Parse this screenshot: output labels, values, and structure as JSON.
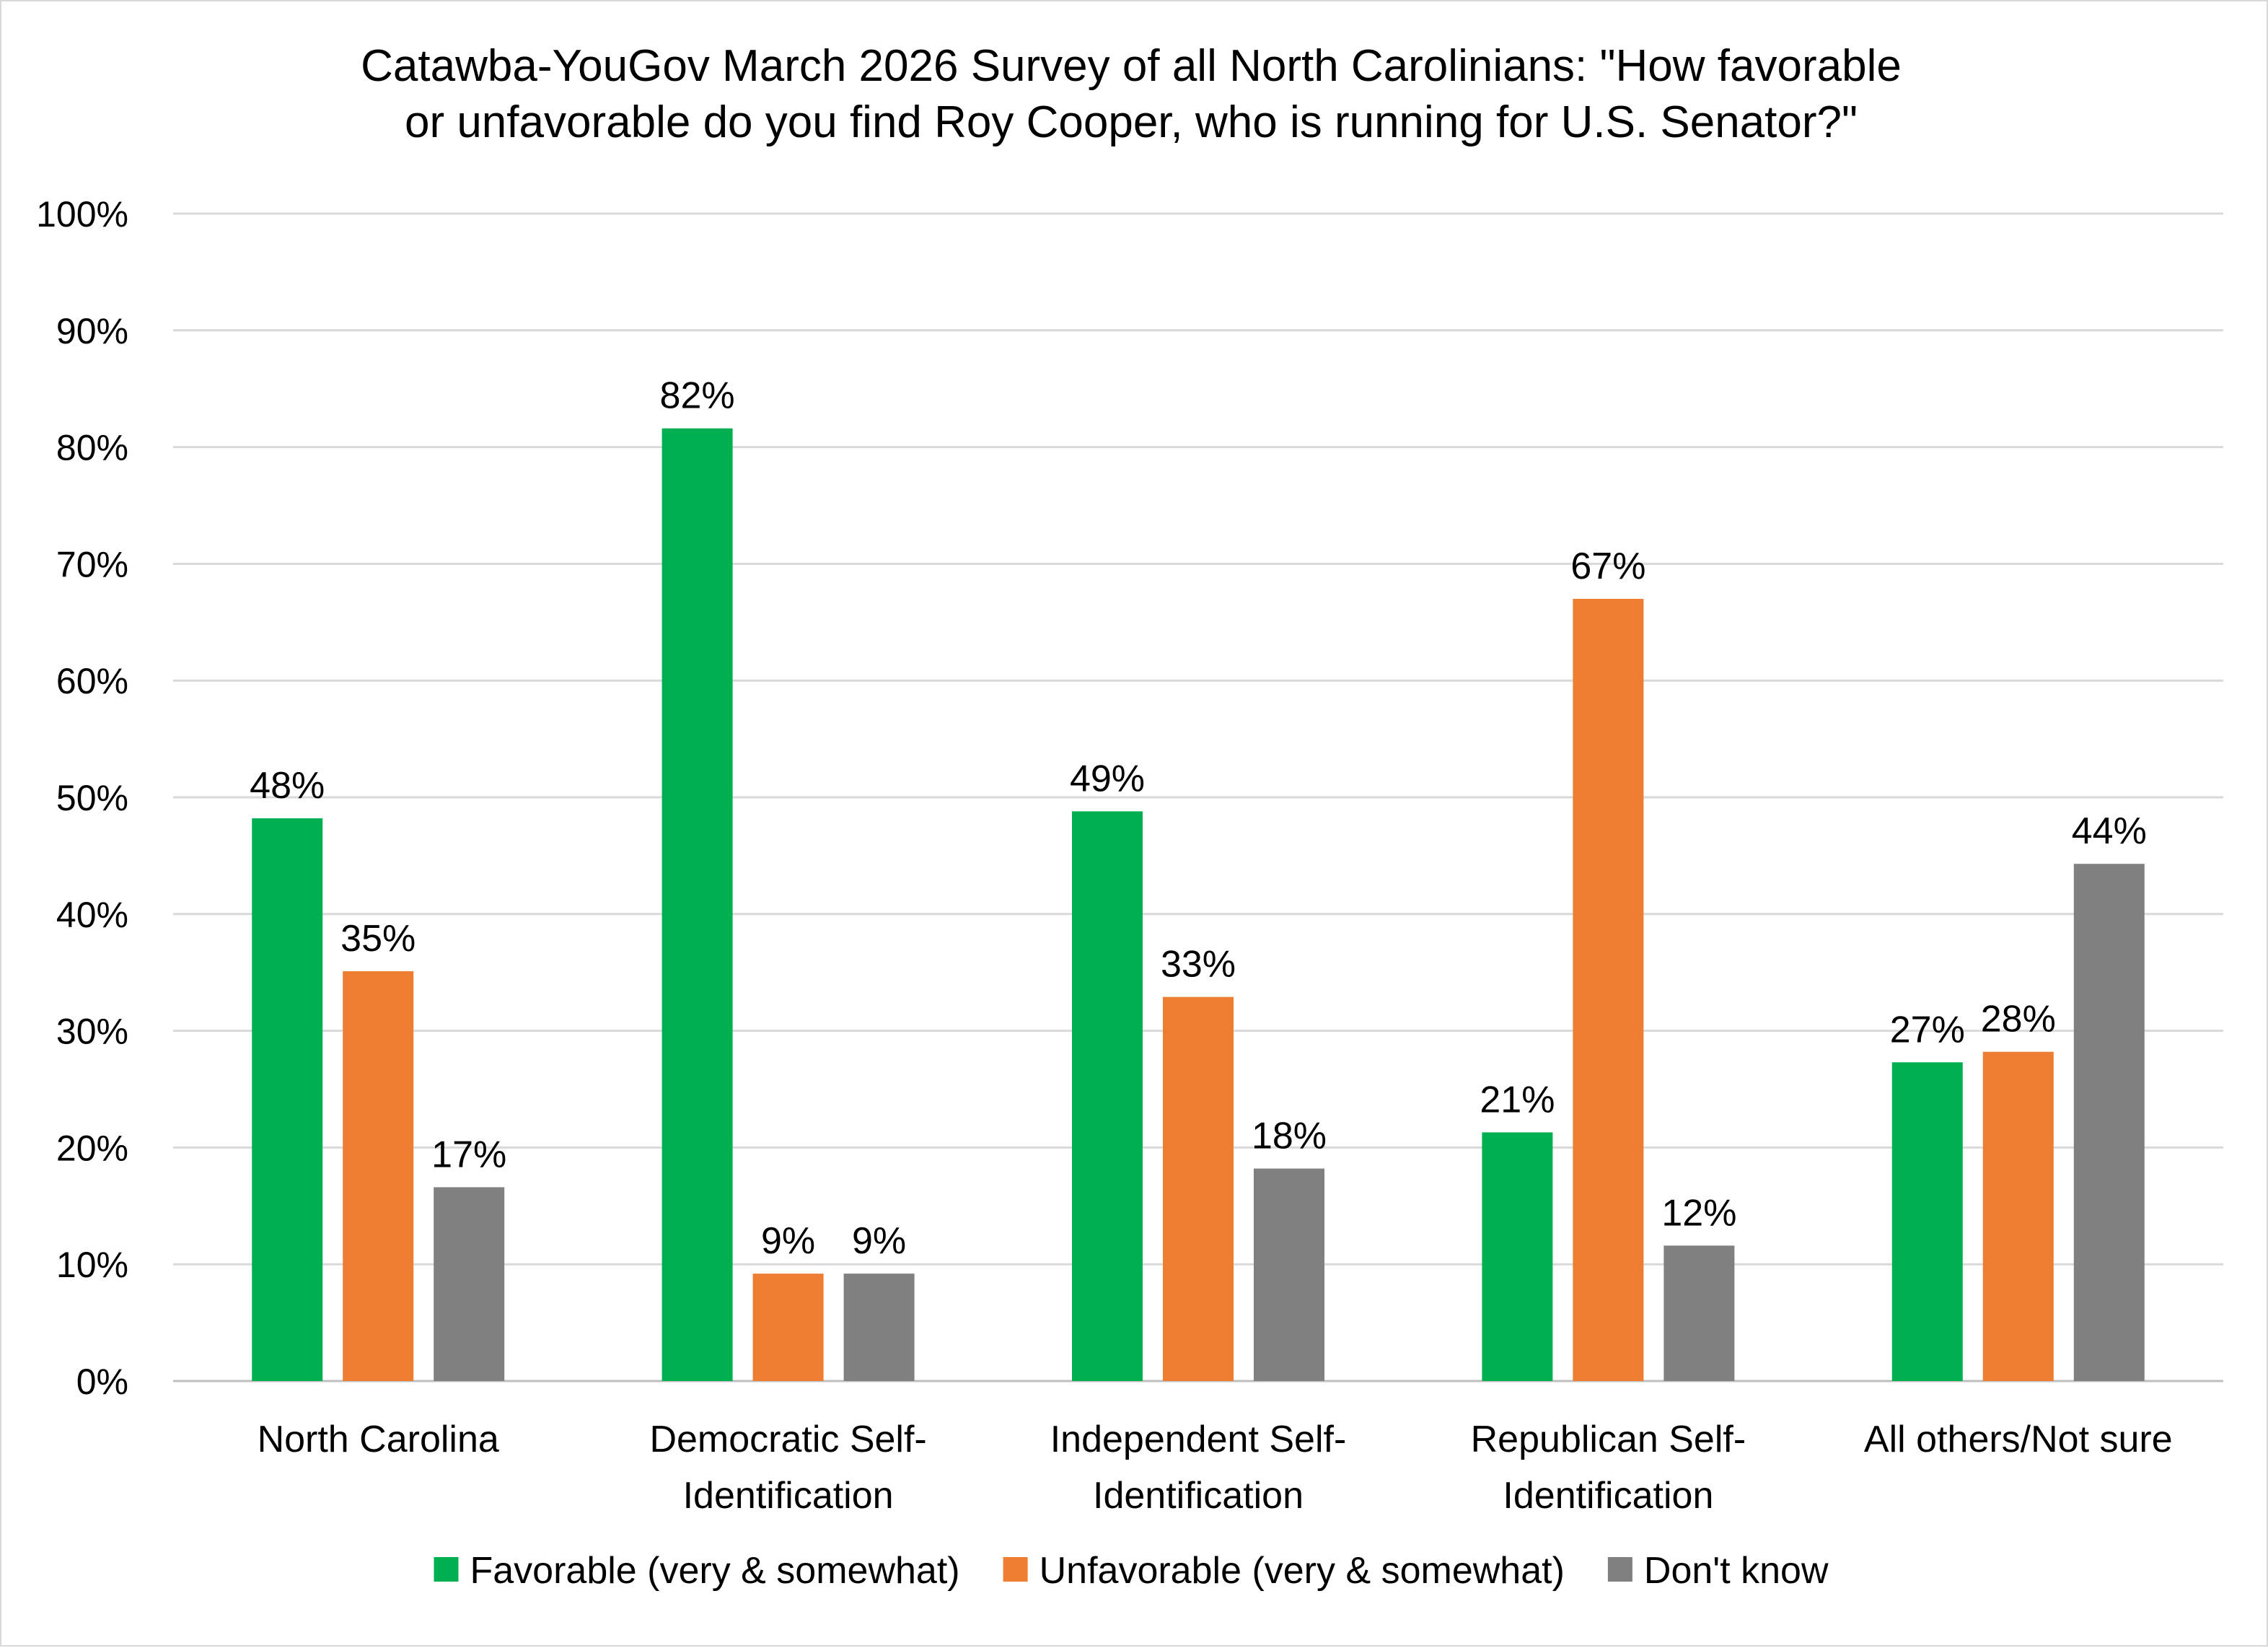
{
  "chart_data": {
    "type": "bar",
    "title": [
      "Catawba-YouGov March 2026 Survey of all North Carolinians: \"How favorable",
      "or unfavorable do you find Roy Cooper, who is running for U.S. Senator?\""
    ],
    "categories": [
      [
        "North Carolina"
      ],
      [
        "Democratic Self-",
        "Identification"
      ],
      [
        "Independent Self-",
        "Identification"
      ],
      [
        "Republican Self-",
        "Identification"
      ],
      [
        "All others/Not sure"
      ]
    ],
    "series": [
      {
        "name": "Favorable (very & somewhat)",
        "color": "#00b050",
        "values": [
          48.2,
          81.6,
          48.8,
          21.3,
          27.3
        ],
        "labels": [
          "48%",
          "82%",
          "49%",
          "21%",
          "27%"
        ]
      },
      {
        "name": "Unfavorable (very & somewhat)",
        "color": "#ed7d31",
        "values": [
          35.1,
          9.2,
          32.9,
          67.0,
          28.2
        ],
        "labels": [
          "35%",
          "9%",
          "33%",
          "67%",
          "28%"
        ]
      },
      {
        "name": "Don't know",
        "color": "#808080",
        "values": [
          16.6,
          9.2,
          18.2,
          11.6,
          44.3
        ],
        "labels": [
          "17%",
          "9%",
          "18%",
          "12%",
          "44%"
        ]
      }
    ],
    "ylim": [
      0,
      100
    ],
    "yticks": [
      "0%",
      "10%",
      "20%",
      "30%",
      "40%",
      "50%",
      "60%",
      "70%",
      "80%",
      "90%",
      "100%"
    ],
    "xlabel": "",
    "ylabel": "",
    "grid": true,
    "legend_position": "bottom"
  }
}
